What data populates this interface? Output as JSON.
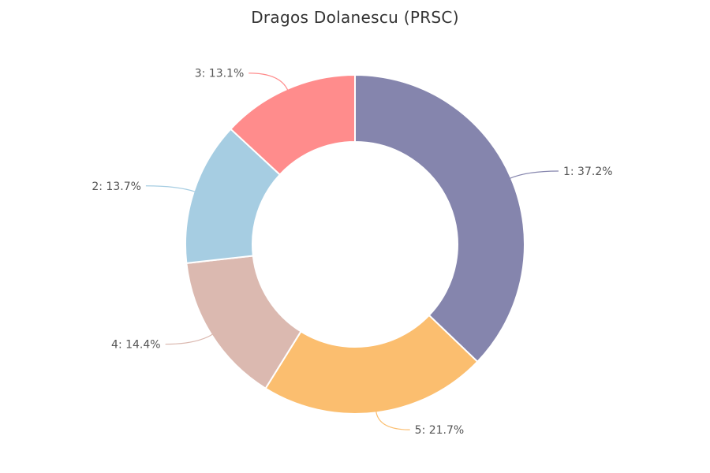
{
  "chart_data": {
    "type": "pie",
    "title": "Dragos Dolanescu (PRSC)",
    "categories": [
      "1",
      "3",
      "2",
      "4",
      "5"
    ],
    "values": [
      37.2,
      13.1,
      13.7,
      14.4,
      21.7
    ],
    "labels": [
      "1: 37.2%",
      "3: 13.1%",
      "2: 13.7%",
      "4: 14.4%",
      "5: 21.7%"
    ],
    "colors": [
      "#8585ad",
      "#ff8c8c",
      "#a6cde2",
      "#dbb9b0",
      "#fbbe6f"
    ],
    "slice_order": [
      "1",
      "5",
      "4",
      "2",
      "3"
    ],
    "donut": true,
    "legend": "none"
  }
}
